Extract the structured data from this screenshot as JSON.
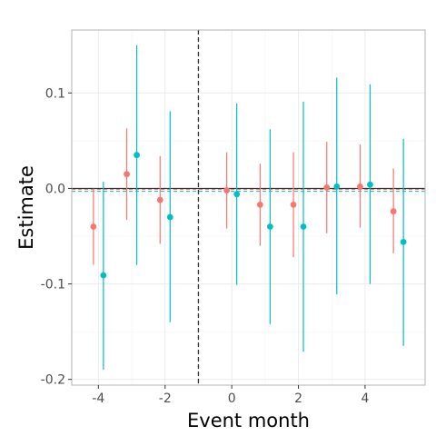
{
  "chart_data": {
    "type": "scatter",
    "xlabel": "Event month",
    "ylabel": "Estimate",
    "xlim": [
      -4.8,
      5.8
    ],
    "ylim": [
      -0.206,
      0.166
    ],
    "x_ticks": [
      -4,
      -2,
      0,
      2,
      4
    ],
    "x_tick_labels": [
      "-4",
      "-2",
      "0",
      "2",
      "4"
    ],
    "y_ticks": [
      -0.2,
      -0.1,
      0.0,
      0.1
    ],
    "y_tick_labels": [
      "-0.2",
      "-0.1",
      "0.0",
      "0.1"
    ],
    "grid": true,
    "legend": "none",
    "reference_lines": {
      "zero_y": 0.0,
      "event_x": -1,
      "series_mean_red": -0.001,
      "series_mean_teal": -0.003
    },
    "series": [
      {
        "color": "#F8766D",
        "points": [
          {
            "x": -4.15,
            "y": -0.04,
            "lo": -0.08,
            "hi": 0.0
          },
          {
            "x": -3.15,
            "y": 0.015,
            "lo": -0.033,
            "hi": 0.063
          },
          {
            "x": -2.15,
            "y": -0.012,
            "lo": -0.058,
            "hi": 0.034
          },
          {
            "x": -0.15,
            "y": -0.002,
            "lo": -0.042,
            "hi": 0.038
          },
          {
            "x": 0.85,
            "y": -0.017,
            "lo": -0.06,
            "hi": 0.026
          },
          {
            "x": 1.85,
            "y": -0.017,
            "lo": -0.072,
            "hi": 0.038
          },
          {
            "x": 2.85,
            "y": 0.001,
            "lo": -0.047,
            "hi": 0.049
          },
          {
            "x": 3.85,
            "y": 0.002,
            "lo": -0.041,
            "hi": 0.046
          },
          {
            "x": 4.85,
            "y": -0.024,
            "lo": -0.068,
            "hi": 0.021
          }
        ]
      },
      {
        "color": "#00BFC4",
        "points": [
          {
            "x": -3.85,
            "y": -0.091,
            "lo": -0.19,
            "hi": 0.007
          },
          {
            "x": -2.85,
            "y": 0.035,
            "lo": -0.08,
            "hi": 0.15
          },
          {
            "x": -1.85,
            "y": -0.03,
            "lo": -0.14,
            "hi": 0.081
          },
          {
            "x": 0.15,
            "y": -0.006,
            "lo": -0.101,
            "hi": 0.089
          },
          {
            "x": 1.15,
            "y": -0.04,
            "lo": -0.142,
            "hi": 0.062
          },
          {
            "x": 2.15,
            "y": -0.04,
            "lo": -0.171,
            "hi": 0.091
          },
          {
            "x": 3.15,
            "y": 0.002,
            "lo": -0.111,
            "hi": 0.116
          },
          {
            "x": 4.15,
            "y": 0.004,
            "lo": -0.1,
            "hi": 0.109
          },
          {
            "x": 5.15,
            "y": -0.056,
            "lo": -0.165,
            "hi": 0.052
          }
        ]
      }
    ]
  }
}
